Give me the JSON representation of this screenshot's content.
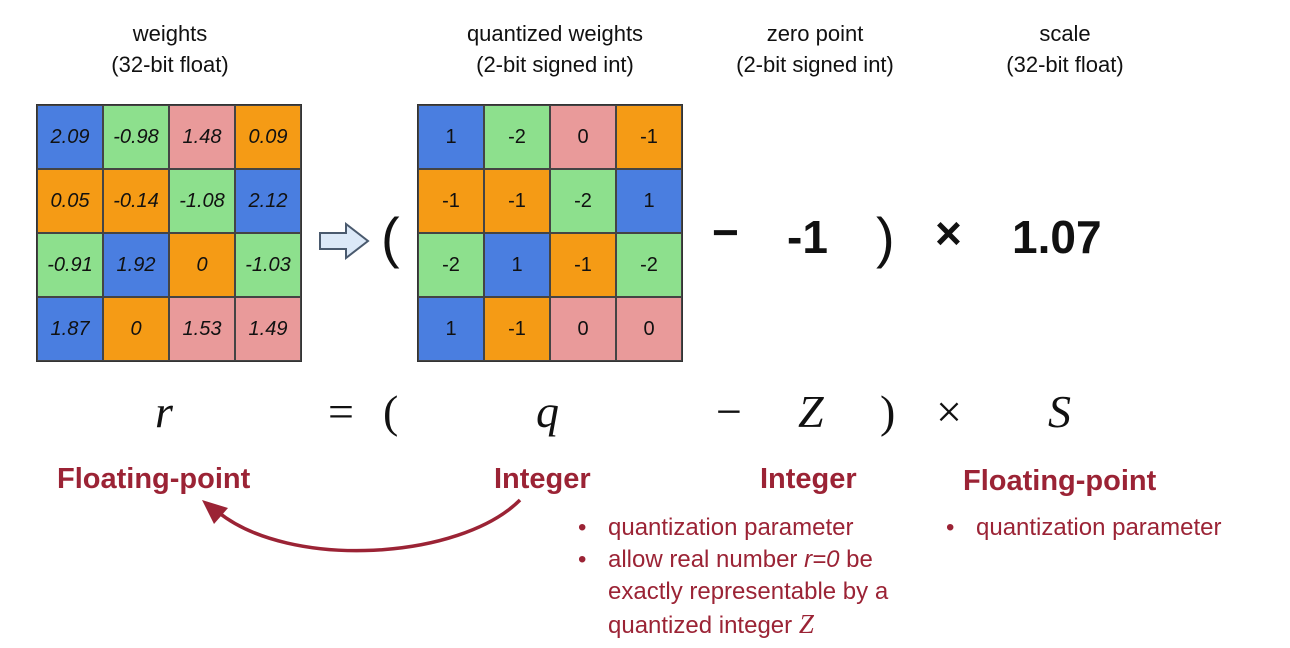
{
  "headers": {
    "weights": {
      "title": "weights",
      "subtitle": "(32-bit float)"
    },
    "quantized": {
      "title": "quantized weights",
      "subtitle": "(2-bit signed int)"
    },
    "zero_point": {
      "title": "zero point",
      "subtitle": "(2-bit signed int)"
    },
    "scale": {
      "title": "scale",
      "subtitle": "(32-bit float)"
    }
  },
  "colors": {
    "blue": "#4a7ee0",
    "green": "#8de08d",
    "orange": "#f59b15",
    "pink": "#e99a9a",
    "accent": "#9b2335"
  },
  "weights_grid": [
    [
      {
        "v": "2.09",
        "c": "blue"
      },
      {
        "v": "-0.98",
        "c": "green"
      },
      {
        "v": "1.48",
        "c": "pink"
      },
      {
        "v": "0.09",
        "c": "orange"
      }
    ],
    [
      {
        "v": "0.05",
        "c": "orange"
      },
      {
        "v": "-0.14",
        "c": "orange"
      },
      {
        "v": "-1.08",
        "c": "green"
      },
      {
        "v": "2.12",
        "c": "blue"
      }
    ],
    [
      {
        "v": "-0.91",
        "c": "green"
      },
      {
        "v": "1.92",
        "c": "blue"
      },
      {
        "v": "0",
        "c": "orange"
      },
      {
        "v": "-1.03",
        "c": "green"
      }
    ],
    [
      {
        "v": "1.87",
        "c": "blue"
      },
      {
        "v": "0",
        "c": "orange"
      },
      {
        "v": "1.53",
        "c": "pink"
      },
      {
        "v": "1.49",
        "c": "pink"
      }
    ]
  ],
  "quantized_grid": [
    [
      {
        "v": "1",
        "c": "blue"
      },
      {
        "v": "-2",
        "c": "green"
      },
      {
        "v": "0",
        "c": "pink"
      },
      {
        "v": "-1",
        "c": "orange"
      }
    ],
    [
      {
        "v": "-1",
        "c": "orange"
      },
      {
        "v": "-1",
        "c": "orange"
      },
      {
        "v": "-2",
        "c": "green"
      },
      {
        "v": "1",
        "c": "blue"
      }
    ],
    [
      {
        "v": "-2",
        "c": "green"
      },
      {
        "v": "1",
        "c": "blue"
      },
      {
        "v": "-1",
        "c": "orange"
      },
      {
        "v": "-2",
        "c": "green"
      }
    ],
    [
      {
        "v": "1",
        "c": "blue"
      },
      {
        "v": "-1",
        "c": "orange"
      },
      {
        "v": "0",
        "c": "pink"
      },
      {
        "v": "0",
        "c": "pink"
      }
    ]
  ],
  "expression": {
    "open_paren": "(",
    "minus": "−",
    "zero_point_value": "-1",
    "close_paren": ")",
    "times": "×",
    "scale_value": "1.07"
  },
  "formula": {
    "r": "r",
    "equals": "=",
    "open_paren": "(",
    "q": "q",
    "minus": "−",
    "z": "Z",
    "close_paren": ")",
    "times": "×",
    "s": "S"
  },
  "labels": {
    "r_type": "Floating-point",
    "q_type": "Integer",
    "z_type": "Integer",
    "s_type": "Floating-point"
  },
  "bullets": {
    "z": [
      "quantization parameter",
      "allow real number",
      "r=0",
      "be",
      "exactly representable by a",
      "quantized integer",
      "Z"
    ],
    "s": [
      "quantization parameter"
    ]
  }
}
